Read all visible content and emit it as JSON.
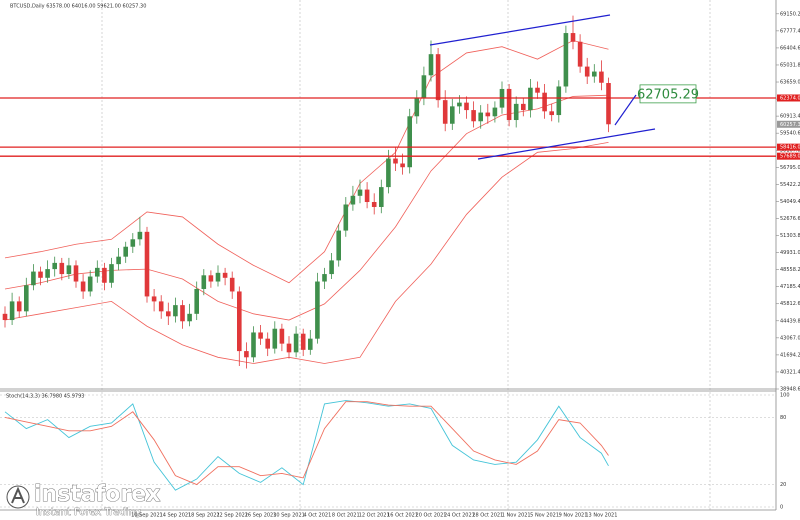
{
  "header": "BTCUSD,Daily  63578.00 64016.00 59621.00 60257.30",
  "watermark": {
    "brand": "instaforex",
    "tagline": "Instant Forex Trading"
  },
  "chart_data": [
    {
      "type": "candlestick",
      "categories": [
        null,
        null,
        null,
        null,
        null,
        null,
        null,
        null,
        null,
        null,
        null,
        null,
        null,
        null,
        null,
        null,
        null,
        null,
        null,
        null,
        "10 Sep 2021",
        null,
        null,
        null,
        "14 Sep 2021",
        null,
        null,
        null,
        "18 Sep 2021",
        null,
        null,
        null,
        "22 Sep 2021",
        null,
        null,
        null,
        "26 Sep 2021",
        null,
        null,
        null,
        "30 Sep 2021",
        null,
        null,
        null,
        "4 Oct 2021",
        null,
        null,
        null,
        "8 Oct 2021",
        null,
        null,
        null,
        "12 Oct 2021",
        null,
        null,
        null,
        "16 Oct 2021",
        null,
        null,
        null,
        "20 Oct 2021",
        null,
        null,
        null,
        "24 Oct 2021",
        null,
        null,
        null,
        "28 Oct 2021",
        null,
        null,
        null,
        "1 Nov 2021",
        null,
        null,
        null,
        "5 Nov 2021",
        null,
        null,
        null,
        "9 Nov 2021",
        null,
        null,
        null,
        "13 Nov 2021",
        null
      ],
      "open": [
        45000,
        44500,
        46000,
        45200,
        47300,
        48400,
        47900,
        48600,
        49100,
        48200,
        48900,
        47600,
        46800,
        48000,
        48700,
        47500,
        49000,
        49600,
        50400,
        51000,
        51600,
        46400,
        46000,
        45200,
        44800,
        45700,
        44400,
        45000,
        47000,
        48100,
        47600,
        48300,
        47900,
        46800,
        42000,
        41500,
        43500,
        43000,
        42200,
        43800,
        42600,
        41900,
        43400,
        42100,
        43000,
        47600,
        48200,
        49300,
        51700,
        53800,
        54500,
        55000,
        54000,
        53600,
        55200,
        57500,
        57100,
        56800,
        60900,
        62400,
        64200,
        65900,
        62200,
        60300,
        61700,
        62000,
        61400,
        60500,
        61200,
        60900,
        61600,
        63100,
        60600,
        61900,
        61400,
        63200,
        62800,
        61300,
        61000,
        63300,
        67600,
        66900,
        64900,
        64100,
        64500,
        63578
      ],
      "high": [
        45600,
        46700,
        46400,
        47900,
        49000,
        48800,
        49300,
        49600,
        49500,
        49500,
        49300,
        48200,
        48500,
        49300,
        49100,
        49500,
        50300,
        50800,
        51500,
        52800,
        52000,
        47000,
        46500,
        45900,
        46300,
        46100,
        45800,
        47600,
        48600,
        48500,
        48900,
        48700,
        48400,
        47200,
        42700,
        44000,
        44100,
        43500,
        44400,
        44200,
        43200,
        44000,
        43800,
        43700,
        48300,
        48700,
        49900,
        52200,
        54400,
        55300,
        55800,
        55600,
        54700,
        55800,
        58200,
        58400,
        57900,
        61500,
        63000,
        64900,
        67000,
        66400,
        63000,
        62300,
        62600,
        62500,
        62100,
        61800,
        61900,
        62100,
        63700,
        63500,
        62500,
        62400,
        63900,
        63700,
        63500,
        61900,
        63800,
        68200,
        69000,
        67500,
        65600,
        65100,
        65400,
        64016
      ],
      "low": [
        43900,
        44100,
        44700,
        44800,
        46900,
        47300,
        47500,
        48000,
        47700,
        47800,
        47100,
        46200,
        46400,
        47500,
        46900,
        47100,
        48500,
        49100,
        49900,
        50500,
        45900,
        45200,
        44600,
        44100,
        44300,
        43800,
        44000,
        44500,
        46500,
        47100,
        47200,
        47300,
        46200,
        40800,
        40600,
        41100,
        42500,
        41600,
        41800,
        42000,
        41400,
        41500,
        41600,
        41700,
        42600,
        47000,
        47800,
        48800,
        51200,
        53300,
        53900,
        53500,
        53000,
        53100,
        54700,
        56500,
        56200,
        56300,
        60300,
        61800,
        63700,
        61600,
        59700,
        59800,
        61100,
        60700,
        60000,
        59900,
        60300,
        60400,
        61100,
        60100,
        60000,
        60900,
        60800,
        62300,
        60700,
        60500,
        60400,
        62800,
        66300,
        64400,
        63500,
        63600,
        63000,
        59621
      ],
      "close": [
        44500,
        46000,
        45200,
        47300,
        48400,
        47900,
        48600,
        49100,
        48200,
        48900,
        47600,
        46800,
        48000,
        48700,
        47500,
        49000,
        49600,
        50400,
        51000,
        51600,
        46400,
        46000,
        45200,
        44800,
        45700,
        44400,
        45000,
        47000,
        48100,
        47600,
        48300,
        47900,
        46800,
        42000,
        41500,
        43500,
        43000,
        42200,
        43800,
        42600,
        41900,
        43400,
        42100,
        43000,
        47600,
        48200,
        49300,
        51700,
        53800,
        54500,
        55000,
        54000,
        53600,
        55200,
        57500,
        57100,
        56800,
        60900,
        62400,
        64200,
        65900,
        62200,
        60300,
        61700,
        62000,
        61400,
        60500,
        61200,
        60900,
        61600,
        63100,
        60600,
        61900,
        61400,
        63200,
        62800,
        61300,
        61000,
        63300,
        67600,
        66900,
        64900,
        64100,
        64500,
        63600,
        60257.3
      ],
      "up_color": "#3f8f4c",
      "down_color": "#e0383a",
      "ylim": [
        38948.6,
        70100
      ],
      "yticks": [
        {
          "value": 38948.6,
          "label": "38948.60"
        },
        {
          "value": 40321.4,
          "label": "40321.40"
        },
        {
          "value": 41694.2,
          "label": "41694.20"
        },
        {
          "value": 43067,
          "label": "43067.00"
        },
        {
          "value": 44439.8,
          "label": "44439.80"
        },
        {
          "value": 45812.6,
          "label": "45812.60"
        },
        {
          "value": 47185.4,
          "label": "47185.40"
        },
        {
          "value": 48558.2,
          "label": "48558.20"
        },
        {
          "value": 49931,
          "label": "49931.00"
        },
        {
          "value": 51303.8,
          "label": "51303.80"
        },
        {
          "value": 52676.6,
          "label": "52676.60"
        },
        {
          "value": 54049.4,
          "label": "54049.40"
        },
        {
          "value": 55422.2,
          "label": "55422.20"
        },
        {
          "value": 56795,
          "label": "56795.00"
        },
        {
          "value": 58167.8,
          "label": "58167.80"
        },
        {
          "value": 59540.6,
          "label": "59540.60"
        },
        {
          "value": 60913.4,
          "label": "60913.40"
        },
        {
          "value": 62286.2,
          "label": "62286.20"
        },
        {
          "value": 63659,
          "label": "63659.00"
        },
        {
          "value": 65031.8,
          "label": "65031.80"
        },
        {
          "value": 66404.6,
          "label": "66404.60"
        },
        {
          "value": 67777.4,
          "label": "67777.40"
        },
        {
          "value": 69150.2,
          "label": "69150.20"
        }
      ],
      "levels": [
        {
          "value": 62374,
          "label": "62374.00"
        },
        {
          "value": 58416,
          "label": "58416.00"
        },
        {
          "value": 57689,
          "label": "57689.00"
        }
      ],
      "level_color": "#e02020",
      "last_price": {
        "value": 60257.3,
        "label": "60257.30"
      },
      "annotation": 62705.29,
      "bands": {
        "color": "#f0605a",
        "x": [
          0,
          5,
          10,
          15,
          20,
          25,
          30,
          35,
          40,
          45,
          50,
          55,
          60,
          65,
          70,
          75,
          80,
          85
        ],
        "upper": [
          49500,
          50000,
          50600,
          51000,
          53200,
          52800,
          50600,
          48900,
          47500,
          50000,
          55500,
          58000,
          64000,
          66000,
          66500,
          65500,
          67000,
          66300
        ],
        "middle": [
          47000,
          47500,
          48200,
          48500,
          48600,
          47800,
          46000,
          45000,
          44500,
          45800,
          48500,
          52000,
          56500,
          59500,
          61000,
          61500,
          62500,
          62600
        ],
        "lower": [
          44500,
          45000,
          45500,
          46000,
          44000,
          42500,
          41500,
          41000,
          41500,
          41000,
          41500,
          46000,
          49000,
          53000,
          56000,
          58000,
          58300,
          58800
        ]
      }
    },
    {
      "type": "line",
      "title": "Stoch(14,3,3) 36.7980 45.9793",
      "x": [
        0,
        3,
        6,
        9,
        12,
        15,
        18,
        21,
        24,
        27,
        30,
        33,
        36,
        39,
        42,
        45,
        48,
        51,
        54,
        57,
        60,
        63,
        66,
        69,
        72,
        75,
        78,
        81,
        84,
        85
      ],
      "series": [
        {
          "color": "#45c4d8",
          "values": [
            85,
            70,
            78,
            62,
            72,
            75,
            92,
            40,
            15,
            25,
            45,
            30,
            22,
            35,
            20,
            92,
            95,
            93,
            90,
            92,
            88,
            55,
            42,
            38,
            40,
            60,
            90,
            62,
            48,
            36.798
          ]
        },
        {
          "color": "#f0705f",
          "values": [
            80,
            76,
            72,
            68,
            68,
            72,
            85,
            60,
            28,
            20,
            36,
            36,
            28,
            30,
            26,
            70,
            94,
            94,
            91,
            90,
            90,
            70,
            50,
            42,
            38,
            50,
            78,
            75,
            55,
            45.9793
          ]
        }
      ],
      "ylim": [
        0,
        100
      ],
      "yticks": [
        0,
        20,
        80,
        100
      ]
    }
  ]
}
